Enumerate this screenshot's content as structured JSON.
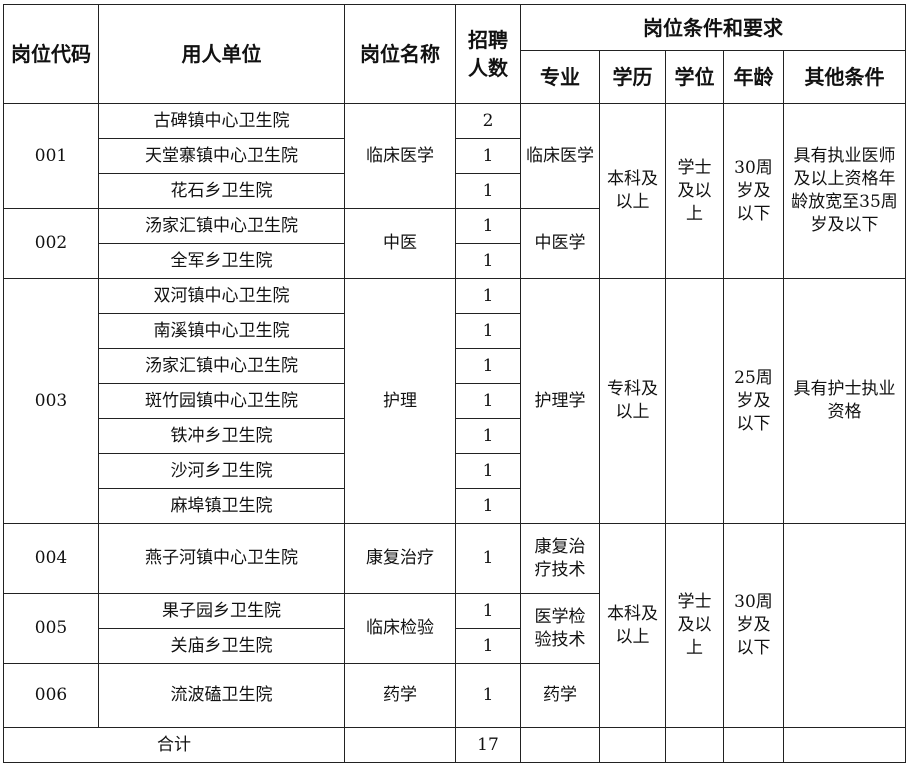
{
  "header": {
    "code": "岗位代码",
    "unit": "用人单位",
    "post": "岗位名称",
    "count": "招聘\n人数",
    "conditions": "岗位条件和要求",
    "major": "专业",
    "education": "学历",
    "degree": "学位",
    "age": "年龄",
    "other": "其他条件"
  },
  "groups": [
    {
      "code": "001",
      "post": "临床医学",
      "major": "临床医学",
      "units": [
        {
          "name": "古碑镇中心卫生院",
          "count": "2"
        },
        {
          "name": "天堂寨镇中心卫生院",
          "count": "1"
        },
        {
          "name": "花石乡卫生院",
          "count": "1"
        }
      ]
    },
    {
      "code": "002",
      "post": "中医",
      "major": "中医学",
      "units": [
        {
          "name": "汤家汇镇中心卫生院",
          "count": "1"
        },
        {
          "name": "全军乡卫生院",
          "count": "1"
        }
      ]
    },
    {
      "code": "003",
      "post": "护理",
      "major": "护理学",
      "units": [
        {
          "name": "双河镇中心卫生院",
          "count": "1"
        },
        {
          "name": "南溪镇中心卫生院",
          "count": "1"
        },
        {
          "name": "汤家汇镇中心卫生院",
          "count": "1"
        },
        {
          "name": "斑竹园镇中心卫生院",
          "count": "1"
        },
        {
          "name": "铁冲乡卫生院",
          "count": "1"
        },
        {
          "name": "沙河乡卫生院",
          "count": "1"
        },
        {
          "name": "麻埠镇卫生院",
          "count": "1"
        }
      ]
    },
    {
      "code": "004",
      "post": "康复治疗",
      "major": "康复治\n疗技术",
      "units": [
        {
          "name": "燕子河镇中心卫生院",
          "count": "1"
        }
      ]
    },
    {
      "code": "005",
      "post": "临床检验",
      "major": "医学检\n验技术",
      "units": [
        {
          "name": "果子园乡卫生院",
          "count": "1"
        },
        {
          "name": "关庙乡卫生院",
          "count": "1"
        }
      ]
    },
    {
      "code": "006",
      "post": "药学",
      "major": "药学",
      "units": [
        {
          "name": "流波磕卫生院",
          "count": "1"
        }
      ]
    }
  ],
  "conditions": [
    {
      "education": "本科及\n以上",
      "degree": "学士\n及以\n上",
      "age": "30周\n岁及\n以下",
      "other": "具有执业医师\n及以上资格年\n龄放宽至35周\n岁及以下"
    },
    {
      "education": "专科及\n以上",
      "degree": "",
      "age": "25周\n岁及\n以下",
      "other": "具有护士执业\n资格"
    },
    {
      "education": "本科及\n以上",
      "degree": "学士\n及以\n上",
      "age": "30周\n岁及\n以下",
      "other": ""
    }
  ],
  "total": {
    "label": "合计",
    "count": "17"
  }
}
